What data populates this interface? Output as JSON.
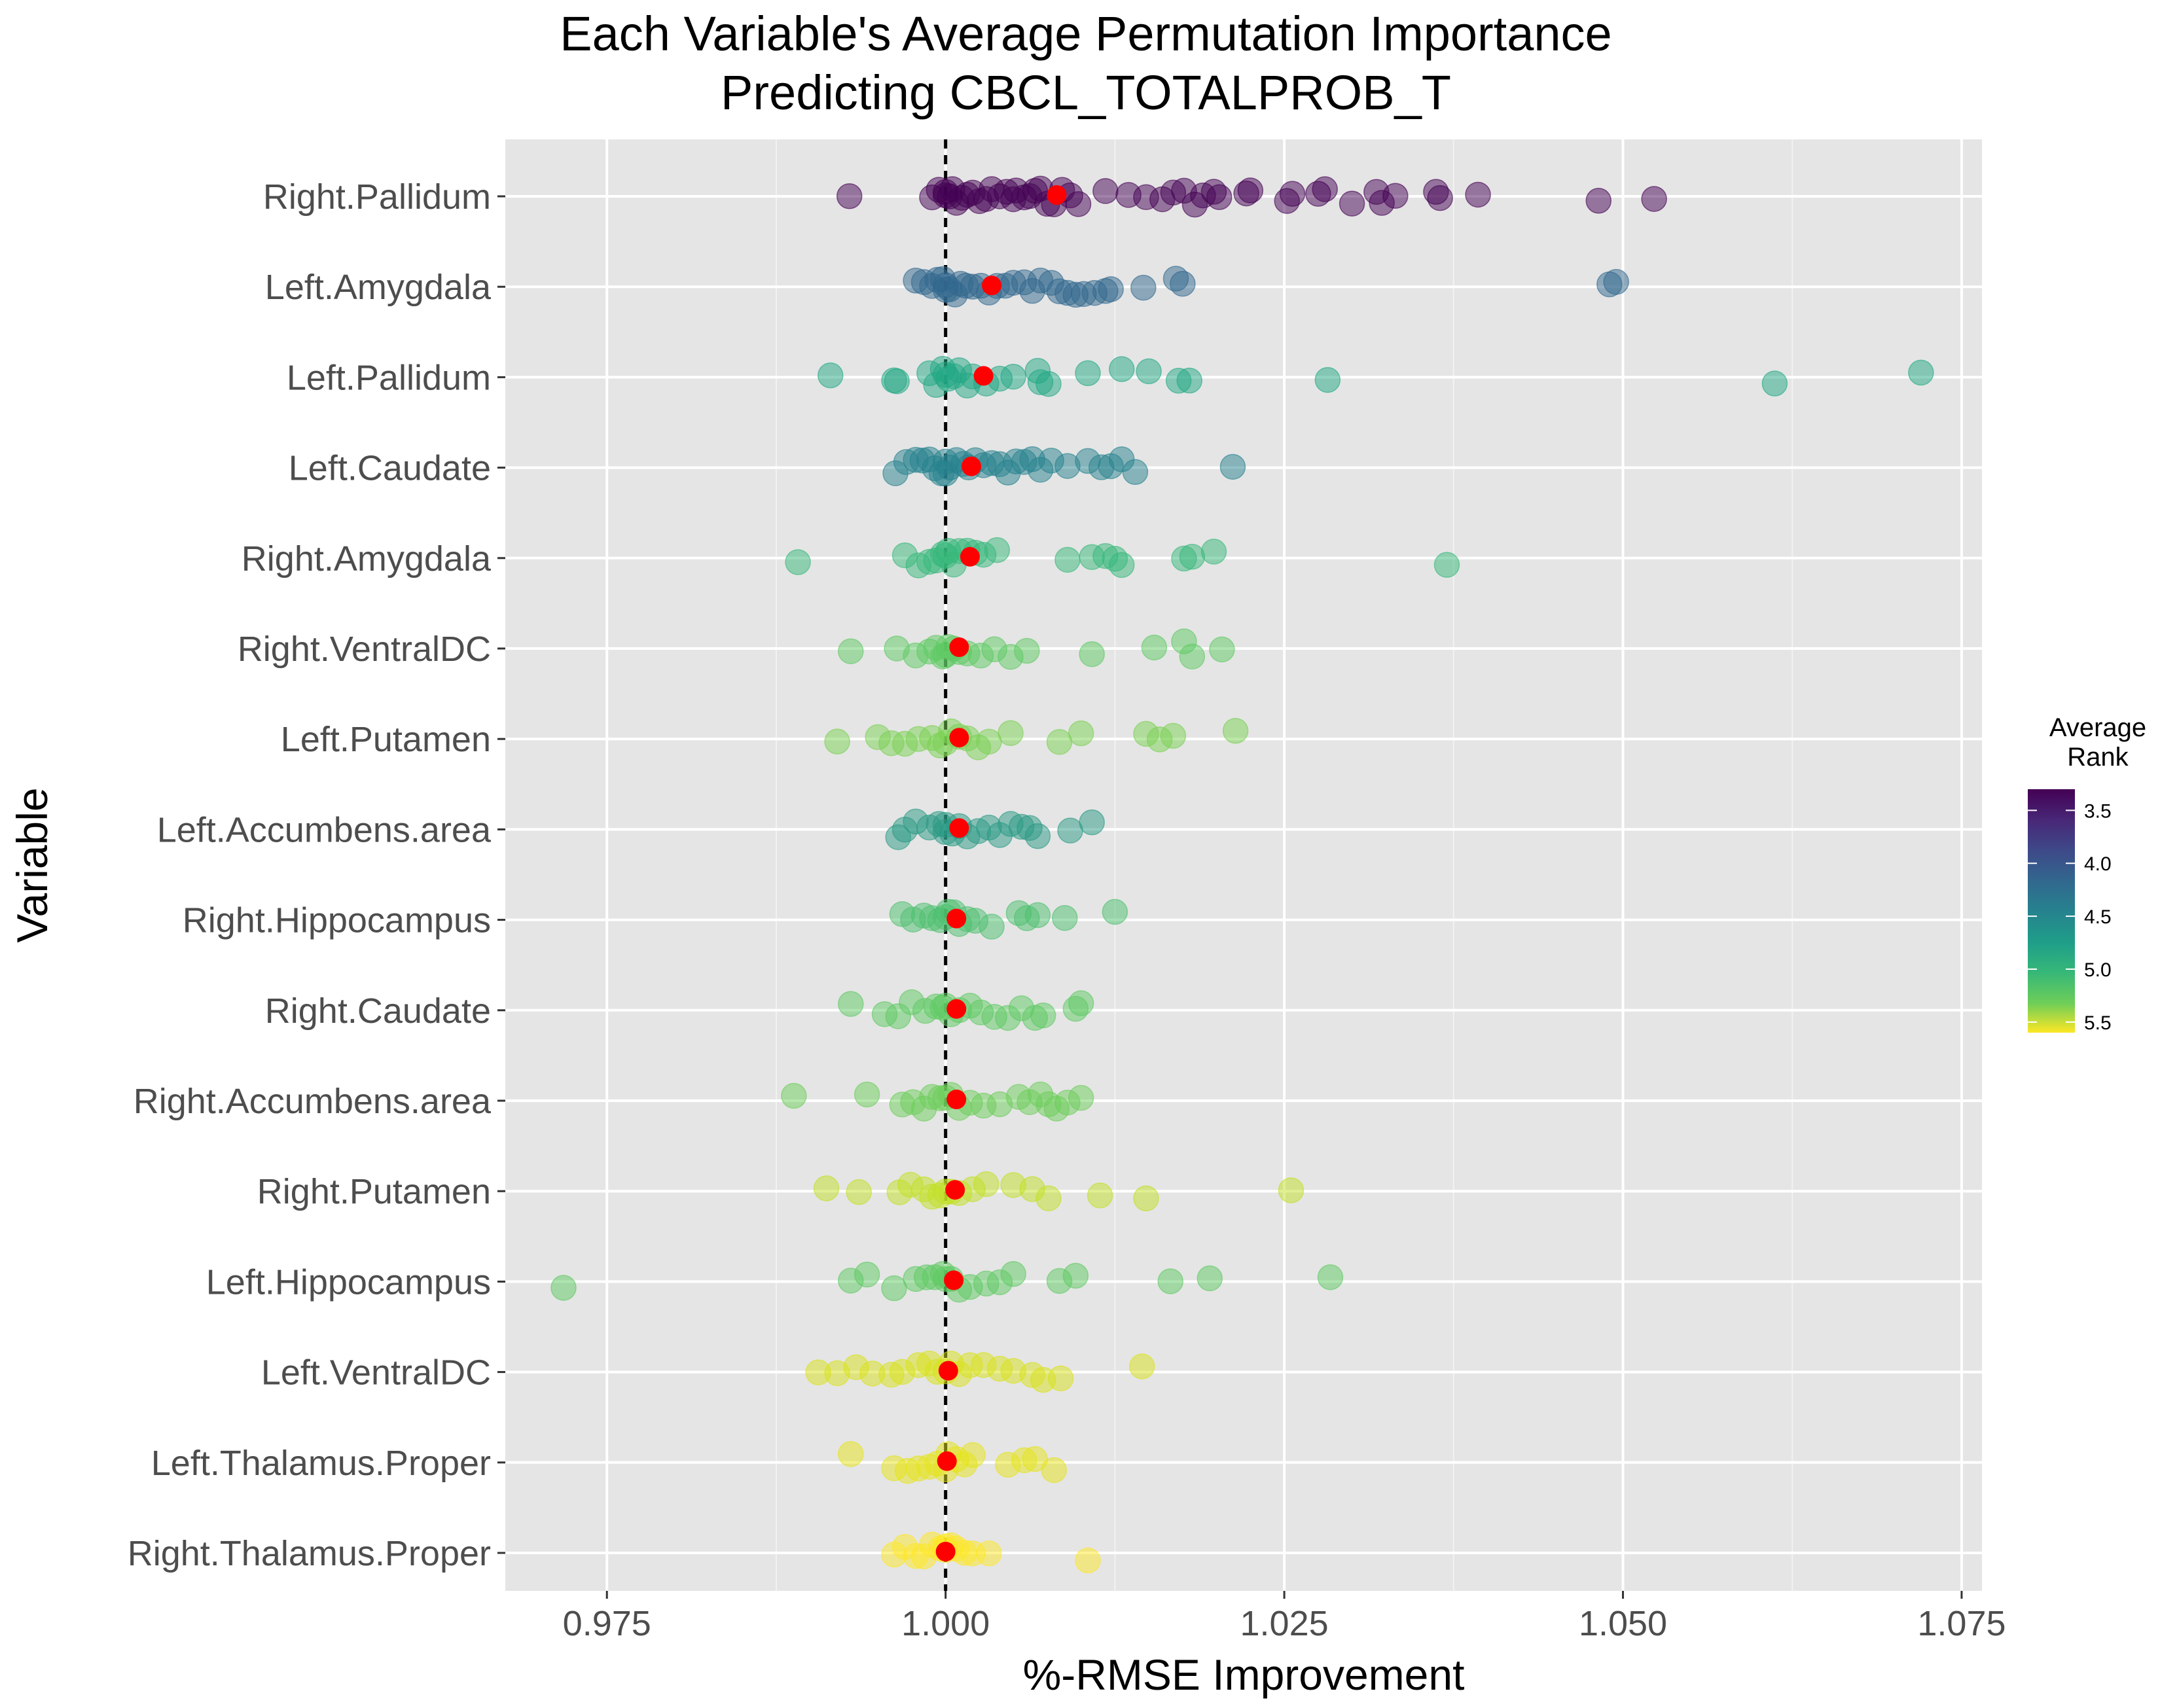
{
  "chart_data": {
    "type": "scatter",
    "title": "Each Variable's Average Permutation Importance",
    "subtitle": "Predicting CBCL_TOTALPROB_T",
    "xlabel": "%-RMSE Improvement",
    "ylabel": "Variable",
    "xlim": [
      0.9675,
      1.0765
    ],
    "x_ticks": [
      "0.975",
      "1.000",
      "1.025",
      "1.050",
      "1.075"
    ],
    "x_tick_values": [
      0.975,
      1.0,
      1.025,
      1.05,
      1.075
    ],
    "reference_line": 1.0,
    "grid": true,
    "legend": {
      "title_line1": "Average",
      "title_line2": "Rank",
      "placement": "right",
      "range": [
        3.3,
        5.6
      ],
      "ticks": [
        {
          "value": 3.5,
          "label": "3.5"
        },
        {
          "value": 4.0,
          "label": "4.0"
        },
        {
          "value": 4.5,
          "label": "4.5"
        },
        {
          "value": 5.0,
          "label": "5.0"
        },
        {
          "value": 5.5,
          "label": "5.5"
        }
      ]
    },
    "mean_color": "#ff0000",
    "categories": [
      {
        "name": "Right.Pallidum",
        "rank": 3.35,
        "color": "#440154",
        "mean": 1.0082,
        "points": [
          0.9929,
          0.999,
          0.9995,
          1.0,
          1.0,
          1.0003,
          1.0005,
          1.0008,
          1.0012,
          1.0016,
          1.002,
          1.0025,
          1.003,
          1.0034,
          1.004,
          1.0045,
          1.005,
          1.0052,
          1.0058,
          1.0062,
          1.0066,
          1.007,
          1.0075,
          1.008,
          1.0086,
          1.0092,
          1.0098,
          1.0118,
          1.0135,
          1.0148,
          1.016,
          1.0168,
          1.0176,
          1.0184,
          1.019,
          1.0198,
          1.0202,
          1.0222,
          1.0225,
          1.0252,
          1.0256,
          1.0275,
          1.028,
          1.03,
          1.0318,
          1.0322,
          1.0332,
          1.0362,
          1.0365,
          1.0393,
          1.0482,
          1.0523
        ]
      },
      {
        "name": "Left.Amygdala",
        "rank": 4.05,
        "color": "#31688e",
        "mean": 1.0034,
        "points": [
          0.9978,
          0.9984,
          0.999,
          0.9994,
          0.9998,
          1.0,
          1.0,
          1.0003,
          1.0007,
          1.0011,
          1.0015,
          1.002,
          1.0026,
          1.0032,
          1.0038,
          1.0044,
          1.005,
          1.0058,
          1.0064,
          1.007,
          1.0078,
          1.0084,
          1.009,
          1.0096,
          1.0102,
          1.011,
          1.0118,
          1.0122,
          1.0146,
          1.017,
          1.0175,
          1.049,
          1.0495
        ]
      },
      {
        "name": "Left.Pallidum",
        "rank": 4.65,
        "color": "#22a884",
        "mean": 1.0028,
        "points": [
          0.9915,
          0.9962,
          0.9964,
          0.9988,
          0.9993,
          0.9998,
          1.0,
          1.0002,
          1.0006,
          1.001,
          1.0016,
          1.002,
          1.003,
          1.004,
          1.005,
          1.0068,
          1.007,
          1.0076,
          1.0105,
          1.013,
          1.015,
          1.0172,
          1.018,
          1.0282,
          1.0612,
          1.072
        ]
      },
      {
        "name": "Left.Caudate",
        "rank": 4.3,
        "color": "#26828e",
        "mean": 1.0019,
        "points": [
          0.9963,
          0.9971,
          0.9978,
          0.9983,
          0.9988,
          0.9992,
          0.9997,
          1.0,
          1.0,
          1.0003,
          1.0008,
          1.0013,
          1.0017,
          1.0022,
          1.0028,
          1.0034,
          1.004,
          1.0046,
          1.0052,
          1.0058,
          1.0064,
          1.007,
          1.0078,
          1.009,
          1.0105,
          1.0115,
          1.0122,
          1.013,
          1.014,
          1.0212
        ]
      },
      {
        "name": "Right.Amygdala",
        "rank": 4.75,
        "color": "#35b779",
        "mean": 1.0018,
        "points": [
          0.9891,
          0.997,
          0.998,
          0.9988,
          0.9993,
          0.9998,
          1.0,
          1.0002,
          1.0006,
          1.001,
          1.0016,
          1.0022,
          1.0028,
          1.0038,
          1.009,
          1.0108,
          1.0118,
          1.0125,
          1.013,
          1.0176,
          1.0182,
          1.0198,
          1.037
        ]
      },
      {
        "name": "Right.VentralDC",
        "rank": 5.05,
        "color": "#5ec962",
        "mean": 1.001,
        "points": [
          0.993,
          0.9964,
          0.9978,
          0.9988,
          0.9993,
          0.9998,
          1.0,
          1.0002,
          1.0006,
          1.001,
          1.0016,
          1.0026,
          1.0036,
          1.0048,
          1.006,
          1.0108,
          1.0154,
          1.0176,
          1.0182,
          1.0204
        ]
      },
      {
        "name": "Left.Putamen",
        "rank": 5.1,
        "color": "#7ad151",
        "mean": 1.001,
        "points": [
          0.992,
          0.995,
          0.996,
          0.997,
          0.998,
          0.999,
          0.9996,
          1.0,
          1.0004,
          1.001,
          1.0016,
          1.0024,
          1.0032,
          1.0048,
          1.0084,
          1.01,
          1.0148,
          1.0158,
          1.0168,
          1.0214
        ]
      },
      {
        "name": "Left.Accumbens.area",
        "rank": 4.6,
        "color": "#2a9a83",
        "mean": 1.001,
        "points": [
          0.9965,
          0.997,
          0.9978,
          0.9988,
          0.9995,
          1.0,
          1.0,
          1.0005,
          1.001,
          1.0016,
          1.0024,
          1.0032,
          1.004,
          1.0048,
          1.0056,
          1.0062,
          1.0068,
          1.0092,
          1.0108
        ]
      },
      {
        "name": "Right.Hippocampus",
        "rank": 4.95,
        "color": "#4cbf6e",
        "mean": 1.0008,
        "points": [
          0.9968,
          0.9976,
          0.9984,
          0.999,
          0.9996,
          1.0,
          1.0002,
          1.0006,
          1.001,
          1.0016,
          1.0022,
          1.0034,
          1.0054,
          1.006,
          1.0068,
          1.0088,
          1.0125
        ]
      },
      {
        "name": "Right.Caudate",
        "rank": 5.0,
        "color": "#5ec962",
        "mean": 1.0008,
        "points": [
          0.993,
          0.9955,
          0.9965,
          0.9975,
          0.9985,
          0.9993,
          0.9998,
          1.0,
          1.0004,
          1.001,
          1.0018,
          1.0026,
          1.0036,
          1.0046,
          1.0056,
          1.0066,
          1.0072,
          1.0096,
          1.01
        ]
      },
      {
        "name": "Right.Accumbens.area",
        "rank": 5.05,
        "color": "#6ccd5a",
        "mean": 1.0008,
        "points": [
          0.9888,
          0.9942,
          0.9968,
          0.9976,
          0.9984,
          0.999,
          0.9996,
          1.0,
          1.0004,
          1.001,
          1.0018,
          1.0028,
          1.004,
          1.0054,
          1.0062,
          1.007,
          1.0076,
          1.0082,
          1.009,
          1.01
        ]
      },
      {
        "name": "Right.Putamen",
        "rank": 5.4,
        "color": "#c2df23",
        "mean": 1.0007,
        "points": [
          0.9912,
          0.9936,
          0.9966,
          0.9974,
          0.9984,
          0.999,
          0.9996,
          1.0,
          1.0004,
          1.001,
          1.002,
          1.003,
          1.005,
          1.0064,
          1.0076,
          1.0114,
          1.0148,
          1.0255
        ]
      },
      {
        "name": "Left.Hippocampus",
        "rank": 5.0,
        "color": "#5ec962",
        "mean": 1.0006,
        "points": [
          0.9718,
          0.993,
          0.9942,
          0.9962,
          0.9978,
          0.9986,
          0.9992,
          0.9998,
          1.0,
          1.0004,
          1.001,
          1.0018,
          1.003,
          1.004,
          1.005,
          1.0084,
          1.0096,
          1.0166,
          1.0195,
          1.0284
        ]
      },
      {
        "name": "Left.VentralDC",
        "rank": 5.5,
        "color": "#d8e219",
        "mean": 1.0002,
        "points": [
          0.9906,
          0.992,
          0.9934,
          0.9946,
          0.996,
          0.9968,
          0.998,
          0.9988,
          0.9994,
          1.0,
          1.0004,
          1.001,
          1.0018,
          1.0028,
          1.004,
          1.005,
          1.0064,
          1.0072,
          1.0085,
          1.0145
        ]
      },
      {
        "name": "Left.Thalamus.Proper",
        "rank": 5.55,
        "color": "#e5e419",
        "mean": 1.0001,
        "points": [
          0.993,
          0.9962,
          0.9972,
          0.998,
          0.9988,
          0.9994,
          1.0,
          1.0002,
          1.0008,
          1.0014,
          1.002,
          1.0046,
          1.0058,
          1.0066,
          1.008
        ]
      },
      {
        "name": "Right.Thalamus.Proper",
        "rank": 5.62,
        "color": "#fde725",
        "mean": 1.0,
        "points": [
          0.9962,
          0.997,
          0.9978,
          0.9984,
          0.999,
          0.9996,
          1.0,
          1.0,
          1.0004,
          1.0008,
          1.0014,
          1.002,
          1.0032,
          1.0105
        ]
      }
    ]
  }
}
